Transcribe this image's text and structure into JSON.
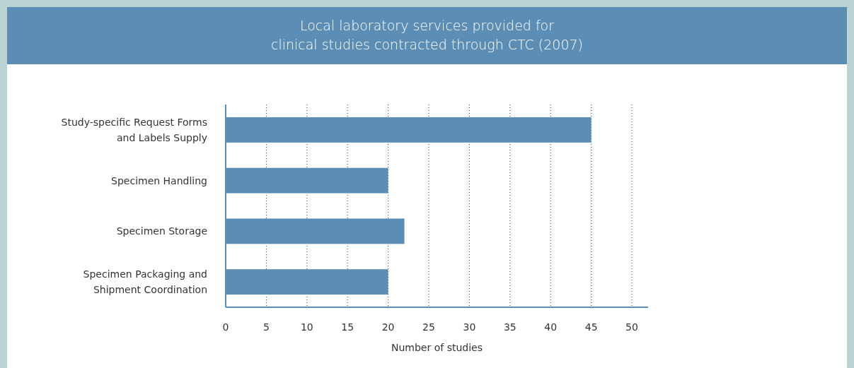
{
  "chart_data": {
    "type": "bar",
    "orientation": "horizontal",
    "title": "Local laboratory services provided for\nclinical studies contracted through CTC (2007)",
    "xlabel": "Number of studies",
    "categories": [
      "Study-specific Request Forms\nand Labels Supply",
      "Specimen Handling",
      "Specimen Storage",
      "Specimen Packaging and\nShipment Coordination"
    ],
    "values": [
      45,
      20,
      22,
      20
    ],
    "color": "#5b8db5",
    "xlim": [
      0,
      52
    ],
    "xticks": [
      0,
      5,
      10,
      15,
      20,
      25,
      30,
      35,
      40,
      45,
      50
    ],
    "grid": "x"
  }
}
